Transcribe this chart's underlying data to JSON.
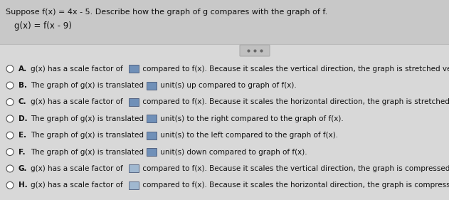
{
  "title_line1": "Suppose f(x) = 4x - 5. Describe how the graph of g compares with the graph of f.",
  "title_line2": "g(x) = f(x - 9)",
  "header_bg": "#c8c8c8",
  "body_bg": "#d8d8d8",
  "box_color_dark": "#7090b8",
  "box_color_light": "#a0b8d0",
  "options": [
    {
      "label": "A",
      "text1": "g(x) has a scale factor of ",
      "text2": " compared to f(x). Because it scales the vertical direction, the graph is stretched vertically.",
      "box_dark": true
    },
    {
      "label": "B",
      "text1": "The graph of g(x) is translated ",
      "text2": " unit(s) up compared to graph of f(x).",
      "box_dark": true
    },
    {
      "label": "C",
      "text1": "g(x) has a scale factor of ",
      "text2": " compared to f(x). Because it scales the horizontal direction, the graph is stretched horizontally.",
      "box_dark": true
    },
    {
      "label": "D",
      "text1": "The graph of g(x) is translated ",
      "text2": " unit(s) to the right compared to the graph of f(x).",
      "box_dark": true
    },
    {
      "label": "E",
      "text1": "The graph of g(x) is translated ",
      "text2": " unit(s) to the left compared to the graph of f(x).",
      "box_dark": true
    },
    {
      "label": "F",
      "text1": "The graph of g(x) is translated ",
      "text2": " unit(s) down compared to graph of f(x).",
      "box_dark": true
    },
    {
      "label": "G",
      "text1": "g(x) has a scale factor of ",
      "text2": " compared to f(x). Because it scales the vertical direction, the graph is compressed vertically.",
      "box_dark": false
    },
    {
      "label": "H",
      "text1": "g(x) has a scale factor of ",
      "text2": " compared to f(x). Because it scales the horizontal direction, the graph is compressed horizontally.",
      "box_dark": false
    }
  ],
  "font_size_title": 8.0,
  "font_size_subtitle": 8.5,
  "font_size_option": 7.5,
  "text_color": "#111111",
  "separator_color": "#bbbbbb",
  "circle_ec": "#555555"
}
